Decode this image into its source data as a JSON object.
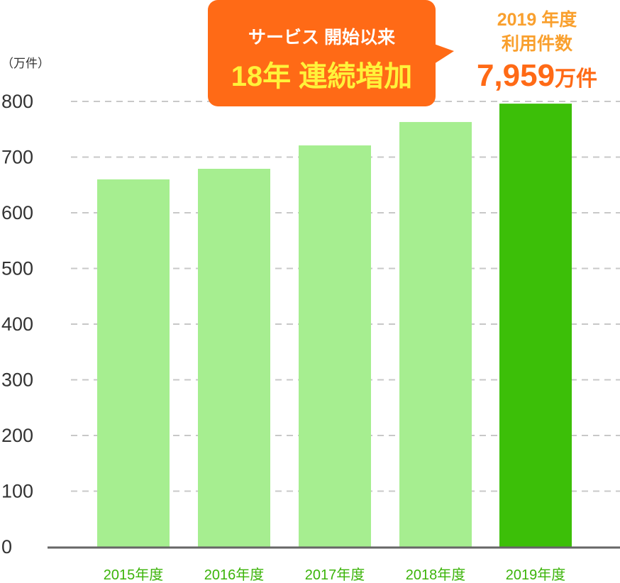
{
  "chart_data": {
    "type": "bar",
    "unit_label": "（万件）",
    "categories": [
      "2015年度",
      "2016年度",
      "2017年度",
      "2018年度",
      "2019年度"
    ],
    "values": [
      660,
      679,
      721,
      763,
      796
    ],
    "highlight_index": 4,
    "ylim": [
      0,
      800
    ],
    "yticks": [
      "0",
      "100",
      "200",
      "300",
      "400",
      "500",
      "600",
      "700",
      "800"
    ],
    "grid": true,
    "colors": {
      "bar": "#a6ee90",
      "highlight": "#3cbf08",
      "label": "#3cb40a"
    }
  },
  "callout": {
    "line1": "サービス 開始以来",
    "line2": "18年 連続増加"
  },
  "highlight": {
    "line1": "2019 年度",
    "line2": "利用件数",
    "value": "7,959",
    "unit": "万件"
  }
}
